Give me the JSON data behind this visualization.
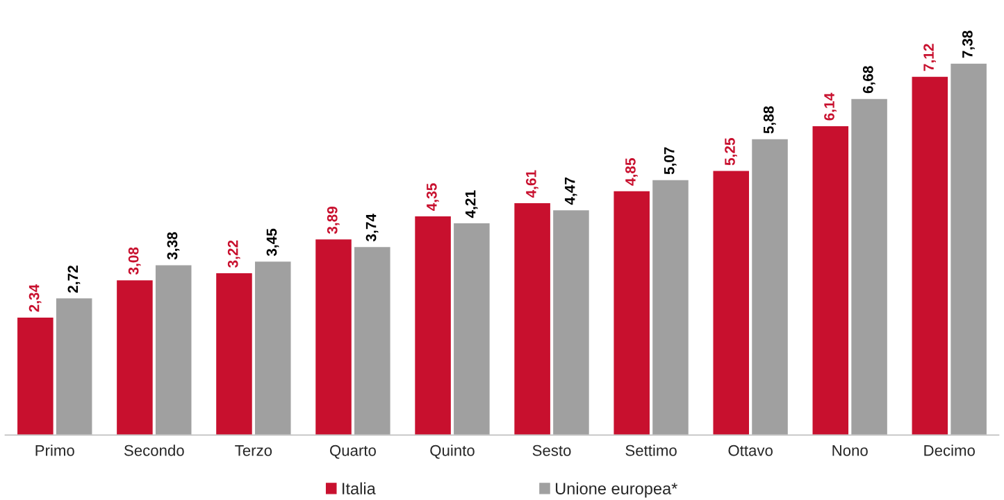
{
  "chart_data": {
    "type": "bar",
    "categories": [
      "Primo",
      "Secondo",
      "Terzo",
      "Quarto",
      "Quinto",
      "Sesto",
      "Settimo",
      "Ottavo",
      "Nono",
      "Decimo"
    ],
    "series": [
      {
        "name": "Italia",
        "color": "#c8102e",
        "values": [
          2.34,
          3.08,
          3.22,
          3.89,
          4.35,
          4.61,
          4.85,
          5.25,
          6.14,
          7.12
        ],
        "value_labels": [
          "2,34",
          "3,08",
          "3,22",
          "3,89",
          "4,35",
          "4,61",
          "4,85",
          "5,25",
          "6,14",
          "7,12"
        ]
      },
      {
        "name": "Unione europea*",
        "color": "#a0a0a0",
        "values": [
          2.72,
          3.38,
          3.45,
          3.74,
          4.21,
          4.47,
          5.07,
          5.88,
          6.68,
          7.38
        ],
        "value_labels": [
          "2,72",
          "3,38",
          "3,45",
          "3,74",
          "4,21",
          "4,47",
          "5,07",
          "5,88",
          "6,68",
          "7,38"
        ]
      }
    ],
    "legend": "bottom",
    "grid": false
  }
}
